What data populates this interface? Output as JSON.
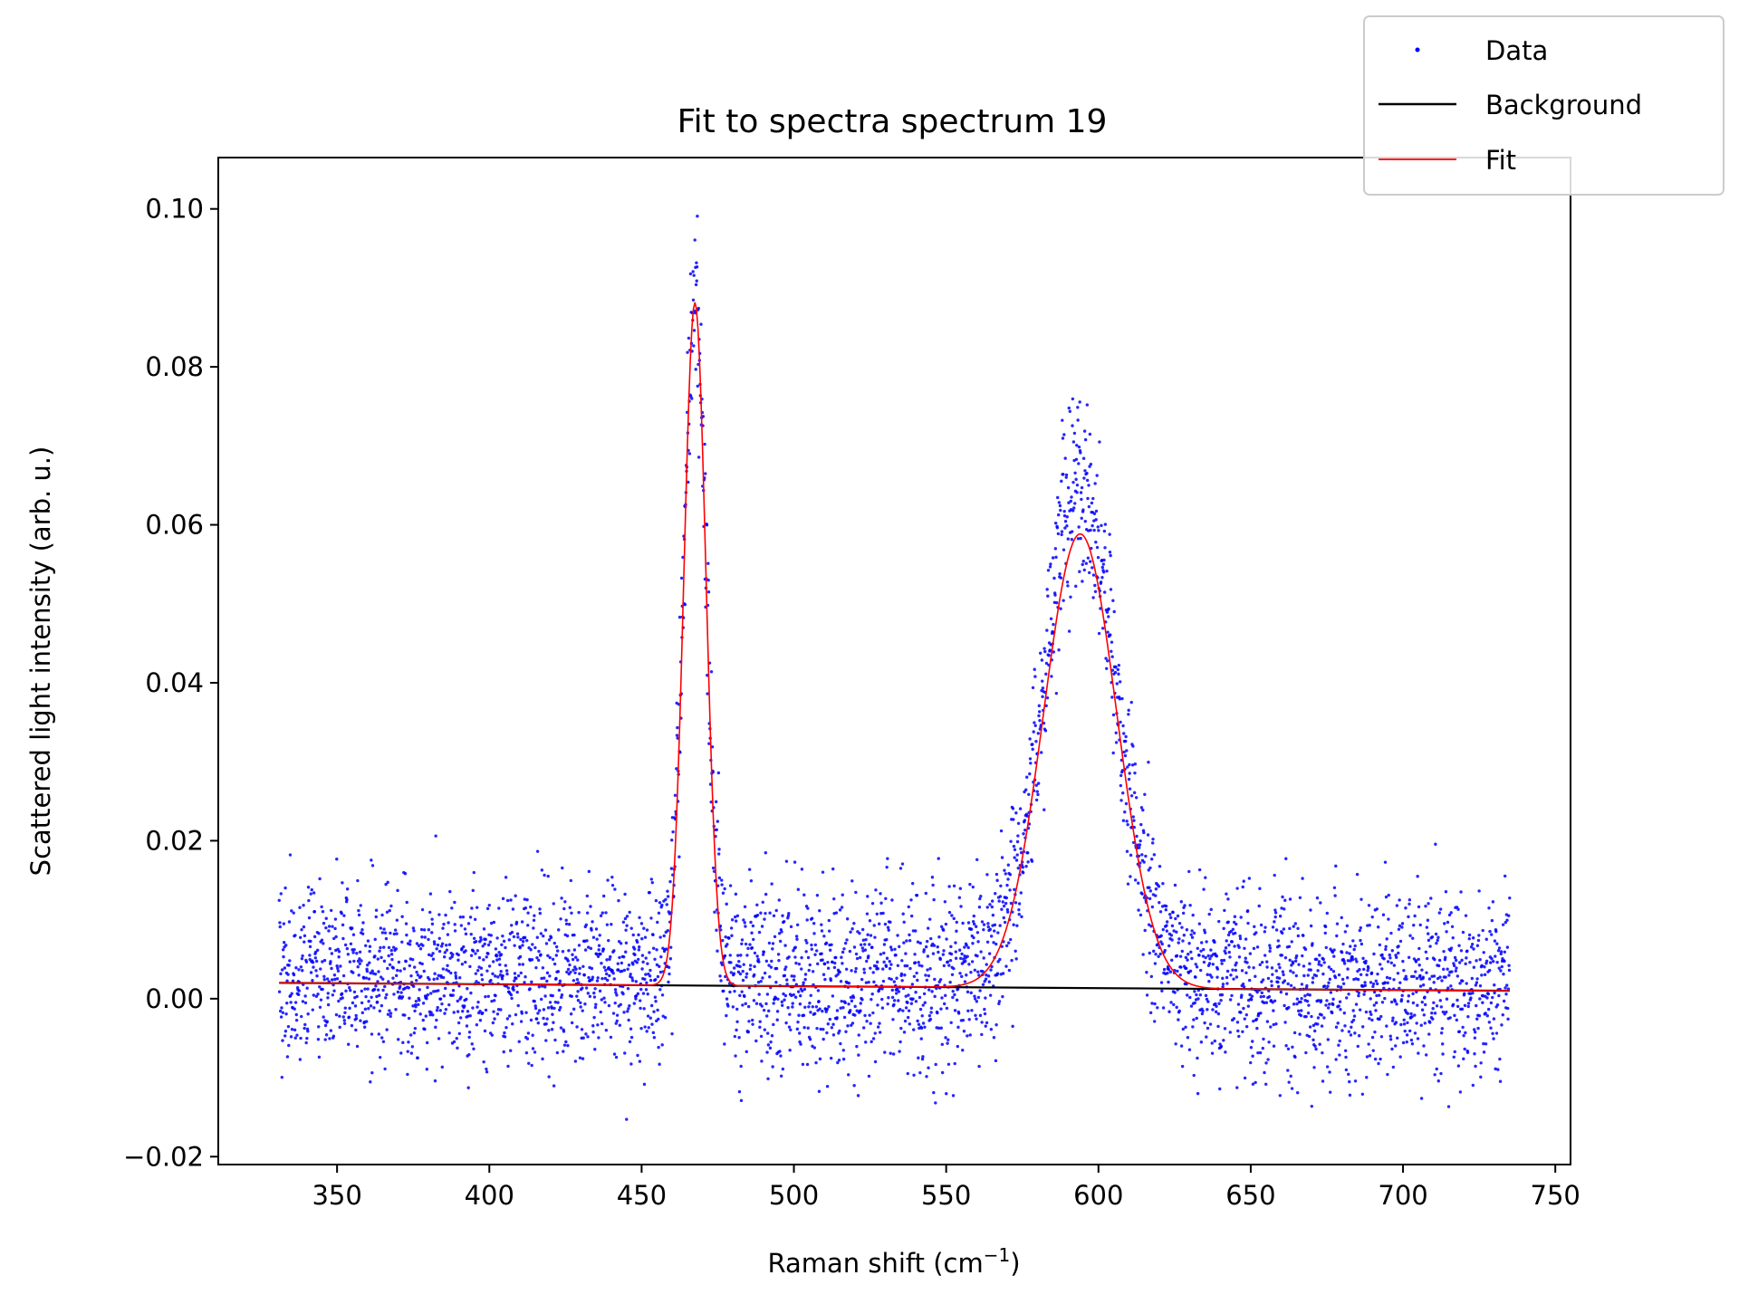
{
  "chart_data": {
    "type": "scatter",
    "title": "Fit to spectra spectrum 19",
    "xlabel_prefix": "Raman shift (cm",
    "xlabel_sup": "−1",
    "xlabel_suffix": ")",
    "ylabel": "Scattered light intensity (arb. u.)",
    "xlim": [
      311,
      755
    ],
    "ylim": [
      -0.021,
      0.1065
    ],
    "xticks": [
      350,
      400,
      450,
      500,
      550,
      600,
      650,
      700,
      750
    ],
    "xtick_labels": [
      "350",
      "400",
      "450",
      "500",
      "550",
      "600",
      "650",
      "700",
      "750"
    ],
    "yticks": [
      -0.02,
      0.0,
      0.02,
      0.04,
      0.06,
      0.08,
      0.1
    ],
    "ytick_labels": [
      "−0.02",
      "0.00",
      "0.02",
      "0.04",
      "0.06",
      "0.08",
      "0.10"
    ],
    "grid": false,
    "legend_position": "top-right",
    "series": [
      {
        "name": "Data",
        "kind": "points",
        "color": "#0000ff",
        "x_range": [
          331,
          735
        ],
        "n_points": 4000,
        "noise_sd": 0.0055,
        "notes": "noisy measurements scattered around the fit curve"
      },
      {
        "name": "Background",
        "kind": "line",
        "color": "#000000",
        "x": [
          331,
          735
        ],
        "y": [
          0.002,
          0.001
        ]
      },
      {
        "name": "Fit",
        "kind": "line",
        "color": "#ff0000",
        "x_range": [
          331,
          735
        ],
        "model": "linear background + two gaussian peaks",
        "peaks": [
          {
            "center": 467.5,
            "height": 0.0865,
            "sigma": 3.6
          },
          {
            "center": 594,
            "height": 0.0575,
            "sigma": 12
          }
        ]
      }
    ]
  },
  "legend": {
    "items": [
      {
        "label": "Data",
        "color": "#0000ff",
        "kind": "marker"
      },
      {
        "label": "Background",
        "color": "#000000",
        "kind": "line"
      },
      {
        "label": "Fit",
        "color": "#ff0000",
        "kind": "line"
      }
    ]
  }
}
